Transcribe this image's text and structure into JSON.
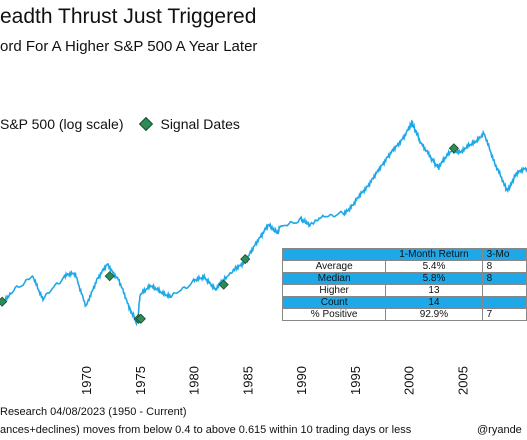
{
  "chart_data": {
    "type": "line",
    "title": "eadth Thrust Just Triggered",
    "subtitle": "ord  For A Higher S&P 500 A Year Later",
    "xlabel": "",
    "ylabel": "",
    "y_scale": "log",
    "grid": false,
    "legend_position": "top-left",
    "series": [
      {
        "name": "S&P 500 (log scale)",
        "color": "#1ea8e8",
        "x": [
          1962,
          1963,
          1965,
          1966,
          1968,
          1969,
          1970,
          1971,
          1972,
          1973,
          1974,
          1974.8,
          1975,
          1976,
          1977,
          1978,
          1980,
          1981,
          1982,
          1982.6,
          1984,
          1985,
          1986,
          1987,
          1987.8,
          1988,
          1990,
          1990.8,
          1992,
          1994,
          1995,
          1996,
          1997,
          1998,
          1999,
          2000,
          2000.3,
          2001,
          2002,
          2002.8,
          2003,
          2004,
          2005,
          2006,
          2007,
          2008,
          2008.9,
          2009.2,
          2010,
          2011
        ],
        "values": [
          4.8,
          5.0,
          5.3,
          4.9,
          5.3,
          5.35,
          4.75,
          5.25,
          5.5,
          5.25,
          4.75,
          4.45,
          4.95,
          5.15,
          5.0,
          4.95,
          5.2,
          5.3,
          5.05,
          5.2,
          5.45,
          5.6,
          5.95,
          6.2,
          6.05,
          6.15,
          6.3,
          6.2,
          6.35,
          6.4,
          6.6,
          6.85,
          7.1,
          7.4,
          7.6,
          7.9,
          8.0,
          7.7,
          7.4,
          7.2,
          7.3,
          7.5,
          7.5,
          7.65,
          7.8,
          7.3,
          6.9,
          6.8,
          7.1,
          7.2
        ]
      },
      {
        "name": "Signal Dates",
        "color": "#2e8b57",
        "x": [
          1962.2,
          1972.2,
          1974.9,
          1975.1,
          1982.8,
          1984.8,
          2004.2
        ],
        "values": [
          4.85,
          5.3,
          4.55,
          4.55,
          5.15,
          5.6,
          7.55
        ]
      }
    ],
    "x_ticks": [
      "1970",
      "1975",
      "1980",
      "1985",
      "1990",
      "1995",
      "2000",
      "2005"
    ],
    "xlim": [
      1962,
      2011
    ],
    "ylim": [
      4.0,
      8.4
    ]
  },
  "legend": {
    "sp500": "S&P 500 (log scale)",
    "signals": "Signal Dates"
  },
  "table": {
    "headers": [
      "",
      "1-Month Return",
      "3-Mo"
    ],
    "rows": [
      [
        "Average",
        "5.4%",
        "8"
      ],
      [
        "Median",
        "5.8%",
        "8"
      ],
      [
        "Higher",
        "13",
        ""
      ],
      [
        "Count",
        "14",
        ""
      ],
      [
        "% Positive",
        "92.9%",
        "7"
      ]
    ]
  },
  "footer": {
    "source": "Research 04/08/2023 (1950 - Current)",
    "note": "ances+declines) moves from below 0.4 to above 0.615 within  10 trading days or less",
    "handle": "@ryande"
  }
}
